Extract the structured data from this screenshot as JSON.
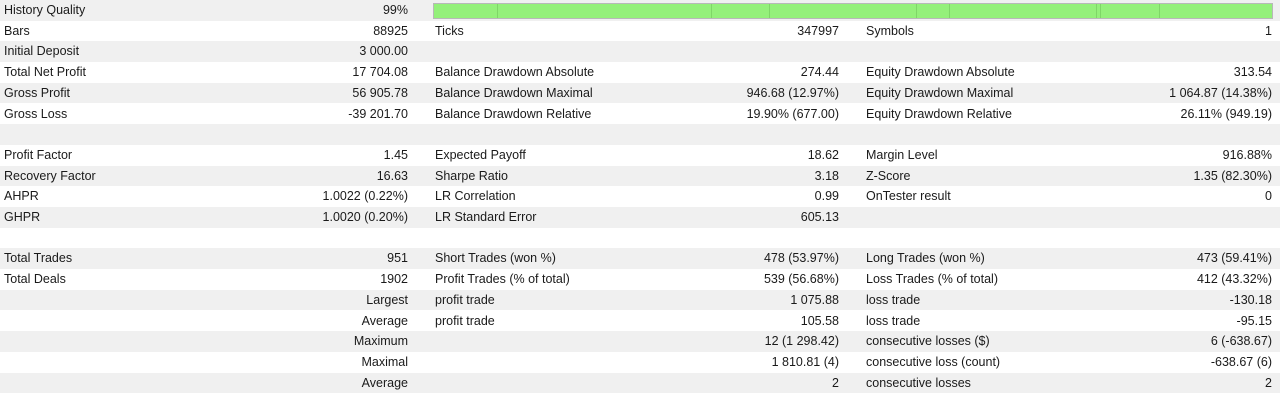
{
  "rows": [
    [
      "History Quality",
      "99%",
      "",
      "",
      "",
      ""
    ],
    [
      "Bars",
      "88925",
      "Ticks",
      "347997",
      "Symbols",
      "1"
    ],
    [
      "Initial Deposit",
      "3 000.00",
      "",
      "",
      "",
      ""
    ],
    [
      "Total Net Profit",
      "17 704.08",
      "Balance Drawdown Absolute",
      "274.44",
      "Equity Drawdown Absolute",
      "313.54"
    ],
    [
      "Gross Profit",
      "56 905.78",
      "Balance Drawdown Maximal",
      "946.68 (12.97%)",
      "Equity Drawdown Maximal",
      "1 064.87 (14.38%)"
    ],
    [
      "Gross Loss",
      "-39 201.70",
      "Balance Drawdown Relative",
      "19.90% (677.00)",
      "Equity Drawdown Relative",
      "26.11% (949.19)"
    ],
    [
      "",
      "",
      "",
      "",
      "",
      ""
    ],
    [
      "Profit Factor",
      "1.45",
      "Expected Payoff",
      "18.62",
      "Margin Level",
      "916.88%"
    ],
    [
      "Recovery Factor",
      "16.63",
      "Sharpe Ratio",
      "3.18",
      "Z-Score",
      "1.35 (82.30%)"
    ],
    [
      "AHPR",
      "1.0022 (0.22%)",
      "LR Correlation",
      "0.99",
      "OnTester result",
      "0"
    ],
    [
      "GHPR",
      "1.0020 (0.20%)",
      "LR Standard Error",
      "605.13",
      "",
      ""
    ],
    [
      "",
      "",
      "",
      "",
      "",
      ""
    ],
    [
      "Total Trades",
      "951",
      "Short Trades (won %)",
      "478 (53.97%)",
      "Long Trades (won %)",
      "473 (59.41%)"
    ],
    [
      "Total Deals",
      "1902",
      "Profit Trades (% of total)",
      "539 (56.68%)",
      "Loss Trades (% of total)",
      "412 (43.32%)"
    ],
    [
      "",
      "Largest",
      "profit trade",
      "1 075.88",
      "loss trade",
      "-130.18"
    ],
    [
      "",
      "Average",
      "profit trade",
      "105.58",
      "loss trade",
      "-95.15"
    ],
    [
      "",
      "Maximum",
      "",
      "12 (1 298.42)",
      "consecutive losses ($)",
      "6 (-638.67)"
    ],
    [
      "",
      "Maximal",
      "",
      "1 810.81 (4)",
      "consecutive loss (count)",
      "-638.67 (6)"
    ],
    [
      "",
      "Average",
      "",
      "2",
      "consecutive losses",
      "2"
    ],
    [
      "",
      "",
      "",
      "",
      "",
      ""
    ]
  ],
  "history_quality_fraction": 0.99,
  "colors": {
    "bar_fill": "#94f07a",
    "row_alt": "#f0f0f0"
  }
}
